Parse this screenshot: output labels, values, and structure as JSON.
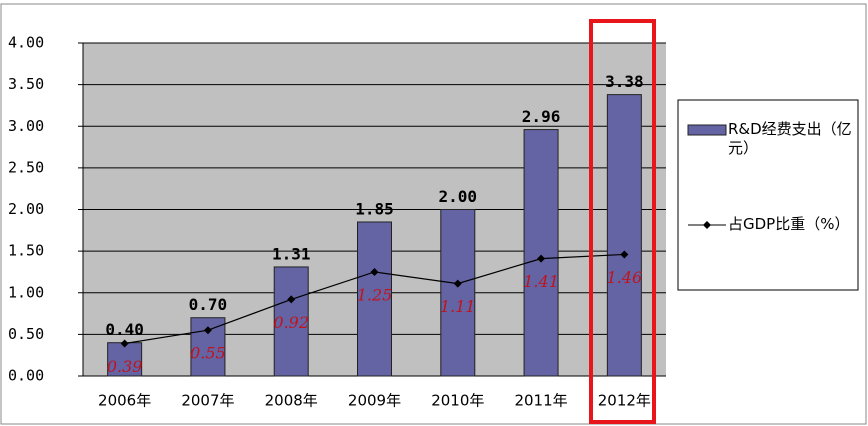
{
  "chart_data": {
    "type": "bar",
    "categories": [
      "2006年",
      "2007年",
      "2008年",
      "2009年",
      "2010年",
      "2011年",
      "2012年"
    ],
    "series": [
      {
        "name": "R&D经费支出（亿元）",
        "type": "bar",
        "color": "#6464a4",
        "values": [
          0.4,
          0.7,
          1.31,
          1.85,
          2.0,
          2.96,
          3.38
        ],
        "value_labels": [
          "0.40",
          "0.70",
          "1.31",
          "1.85",
          "2.00",
          "2.96",
          "3.38"
        ]
      },
      {
        "name": "占GDP比重（%）",
        "type": "line",
        "color": "#000000",
        "values": [
          0.39,
          0.55,
          0.92,
          1.25,
          1.11,
          1.41,
          1.46
        ]
      }
    ],
    "ylim": [
      0,
      4
    ],
    "yticks": [
      {
        "value": 0,
        "label": "0.00"
      },
      {
        "value": 0.5,
        "label": "0.50"
      },
      {
        "value": 1,
        "label": "1.00"
      },
      {
        "value": 1.5,
        "label": "1.50"
      },
      {
        "value": 2,
        "label": "2.00"
      },
      {
        "value": 2.5,
        "label": "2.50"
      },
      {
        "value": 3,
        "label": "3.00"
      },
      {
        "value": 3.5,
        "label": "3.50"
      },
      {
        "value": 4,
        "label": "4.00"
      }
    ],
    "grid": true
  }
}
